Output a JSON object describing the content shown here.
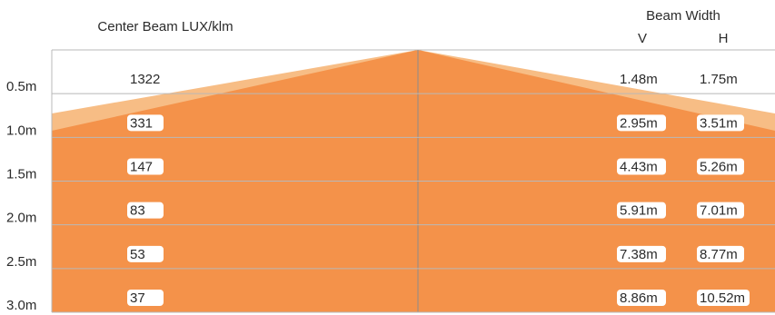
{
  "chart_data": {
    "type": "area",
    "title": "Center Beam LUX/klm",
    "beam_width_title": "Beam Width",
    "beam_width_headers": [
      "V",
      "H"
    ],
    "distance_ticks": [
      "0.5m",
      "1.0m",
      "1.5m",
      "2.0m",
      "2.5m",
      "3.0m"
    ],
    "rows": [
      {
        "distance": 0.5,
        "lux": "1322",
        "v": "1.48m",
        "h": "1.75m"
      },
      {
        "distance": 1.0,
        "lux": "331",
        "v": "2.95m",
        "h": "3.51m"
      },
      {
        "distance": 1.5,
        "lux": "147",
        "v": "4.43m",
        "h": "5.26m"
      },
      {
        "distance": 2.0,
        "lux": "83",
        "v": "5.91m",
        "h": "7.01m"
      },
      {
        "distance": 2.5,
        "lux": "53",
        "v": "7.38m",
        "h": "8.77m"
      },
      {
        "distance": 3.0,
        "lux": "37",
        "v": "8.86m",
        "h": "10.52m"
      }
    ],
    "colors": {
      "beam_v": "#f4924a",
      "beam_h": "#f7bd85",
      "grid": "#b8b8b8",
      "label_bg": "#ffffff"
    }
  }
}
